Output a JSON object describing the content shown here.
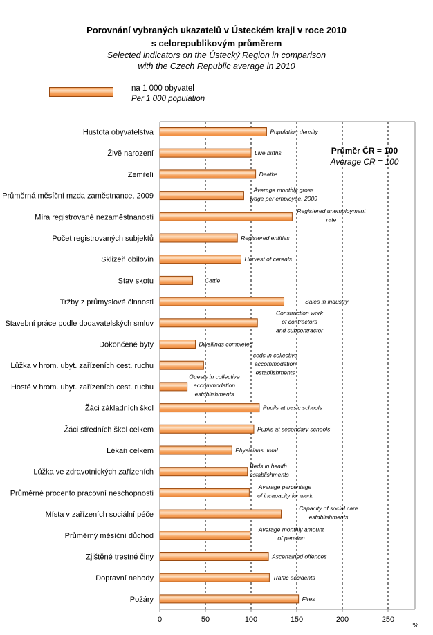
{
  "chart_data": {
    "type": "bar",
    "orientation": "horizontal",
    "title": "Porovnání vybraných ukazatelů v Ústeckém kraji  v roce 2010",
    "title_line2": "s celorepublikovým průměrem",
    "subtitle": "Selected indicators on the Ústecký Region in comparison",
    "subtitle_line2": "with the Czech Republic average in 2010",
    "legend": {
      "cz": "na 1 000 obyvatel",
      "en": "Per 1 000 population",
      "placement": "top-left"
    },
    "reference_note": {
      "cz": "Průměr  ČR = 100",
      "en": "Average CR = 100"
    },
    "xlabel": "%",
    "xlim": [
      0,
      280
    ],
    "xticks": [
      0,
      50,
      100,
      150,
      200,
      250
    ],
    "grid": "vertical-dashed",
    "bar_color": "#f4a060",
    "bar_border": "#9a4a10",
    "categories": [
      "Hustota obyvatelstva",
      "Živě narození",
      "Zemřelí",
      "Průměrná měsíční mzda zaměstnance, 2009",
      "Míra registrované nezaměstnanosti",
      "Počet registrovaných subjektů",
      "Sklizeň obilovin",
      "Stav skotu",
      "Tržby z průmyslové činnosti",
      "Stavební práce podle dodavatelských smluv",
      "Dokončené byty",
      "Lůžka v hrom. ubyt. zařízeních cest. ruchu",
      "Hosté v hrom. ubyt. zařízeních cest. ruchu",
      "Žáci základních škol",
      "Žáci středních škol celkem",
      "Lékaři celkem",
      "Lůžka ve zdravotnických zařízeních",
      "Průměrné procento pracovní neschopnosti",
      "Místa v zařízeních sociální péče",
      "Průměrný měsíční důchod",
      "Zjištěné trestné činy",
      "Dopravní nehody",
      "Požáry"
    ],
    "annotations": [
      [
        "Population density"
      ],
      [
        "Live births"
      ],
      [
        "Deaths"
      ],
      [
        "Average monthly gross",
        "wage per employee, 2009"
      ],
      [
        "Registered unemployment",
        "rate"
      ],
      [
        "Registered entities"
      ],
      [
        "Harvest of cereals"
      ],
      [
        "Cattle"
      ],
      [
        "Sales in industry"
      ],
      [
        "Construction work",
        "of contractors",
        "and subcontractor"
      ],
      [
        "Dwellings completed"
      ],
      [
        "ceds in collective",
        "accommodation",
        "establishments"
      ],
      [
        "Guests in collective",
        "accommodation",
        "establishments"
      ],
      [
        "Pupils at basic schools"
      ],
      [
        "Pupils at secondary schools"
      ],
      [
        "Physicians, total"
      ],
      [
        "Beds in health",
        "establishments"
      ],
      [
        "Average percentage",
        "of incapacity for work"
      ],
      [
        "Capacity of social care",
        "establishments"
      ],
      [
        "Average monthly amount",
        "of pension"
      ],
      [
        "Ascertained offences"
      ],
      [
        "Traffic accidents"
      ],
      [
        "Fires"
      ]
    ],
    "values": [
      117,
      100,
      105,
      92,
      145,
      85,
      89,
      36,
      136,
      107,
      39,
      48,
      30,
      109,
      103,
      79,
      96,
      98,
      133,
      99,
      119,
      120,
      152
    ]
  }
}
